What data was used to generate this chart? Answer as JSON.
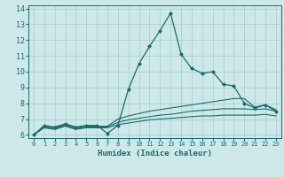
{
  "xlabel": "Humidex (Indice chaleur)",
  "bg_color": "#cce8e8",
  "grid_color": "#aacccc",
  "line_color": "#1a6b6b",
  "xlim": [
    -0.5,
    23.5
  ],
  "ylim": [
    5.8,
    14.2
  ],
  "yticks": [
    6,
    7,
    8,
    9,
    10,
    11,
    12,
    13,
    14
  ],
  "xticks": [
    0,
    1,
    2,
    3,
    4,
    5,
    6,
    7,
    8,
    9,
    10,
    11,
    12,
    13,
    14,
    15,
    16,
    17,
    18,
    19,
    20,
    21,
    22,
    23
  ],
  "lines": [
    {
      "x": [
        0,
        1,
        2,
        3,
        4,
        5,
        6,
        7,
        8,
        9,
        10,
        11,
        12,
        13,
        14,
        15,
        16,
        17,
        18,
        19,
        20,
        21,
        22,
        23
      ],
      "y": [
        6.0,
        6.6,
        6.5,
        6.7,
        6.5,
        6.6,
        6.6,
        6.1,
        6.6,
        8.9,
        10.5,
        11.6,
        12.6,
        13.7,
        11.1,
        10.2,
        9.9,
        10.0,
        9.2,
        9.1,
        8.0,
        7.7,
        7.9,
        7.5
      ],
      "marker": "D",
      "markersize": 2.0,
      "lw": 0.9
    },
    {
      "x": [
        0,
        1,
        2,
        3,
        4,
        5,
        6,
        7,
        8,
        9,
        10,
        11,
        12,
        13,
        14,
        15,
        16,
        17,
        18,
        19,
        20,
        21,
        22,
        23
      ],
      "y": [
        6.0,
        6.5,
        6.45,
        6.65,
        6.45,
        6.55,
        6.55,
        6.55,
        7.0,
        7.2,
        7.35,
        7.5,
        7.6,
        7.7,
        7.8,
        7.9,
        8.0,
        8.1,
        8.2,
        8.3,
        8.3,
        7.75,
        7.9,
        7.6
      ],
      "marker": null,
      "lw": 0.8
    },
    {
      "x": [
        0,
        1,
        2,
        3,
        4,
        5,
        6,
        7,
        8,
        9,
        10,
        11,
        12,
        13,
        14,
        15,
        16,
        17,
        18,
        19,
        20,
        21,
        22,
        23
      ],
      "y": [
        6.0,
        6.5,
        6.4,
        6.6,
        6.4,
        6.5,
        6.5,
        6.5,
        6.8,
        6.95,
        7.05,
        7.15,
        7.25,
        7.3,
        7.4,
        7.5,
        7.55,
        7.6,
        7.65,
        7.65,
        7.65,
        7.6,
        7.65,
        7.5
      ],
      "marker": null,
      "lw": 0.8
    },
    {
      "x": [
        0,
        1,
        2,
        3,
        4,
        5,
        6,
        7,
        8,
        9,
        10,
        11,
        12,
        13,
        14,
        15,
        16,
        17,
        18,
        19,
        20,
        21,
        22,
        23
      ],
      "y": [
        6.0,
        6.45,
        6.35,
        6.55,
        6.35,
        6.45,
        6.45,
        6.45,
        6.65,
        6.75,
        6.85,
        6.95,
        7.0,
        7.05,
        7.1,
        7.15,
        7.2,
        7.2,
        7.25,
        7.25,
        7.25,
        7.25,
        7.3,
        7.2
      ],
      "marker": null,
      "lw": 0.8
    }
  ]
}
